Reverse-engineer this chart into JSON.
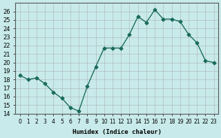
{
  "x": [
    0,
    1,
    2,
    3,
    4,
    5,
    6,
    7,
    8,
    9,
    10,
    11,
    12,
    13,
    14,
    15,
    16,
    17,
    18,
    19,
    20,
    21,
    22,
    23
  ],
  "y": [
    18.5,
    18.0,
    18.2,
    17.5,
    16.5,
    15.8,
    14.7,
    14.3,
    17.2,
    19.5,
    21.7,
    21.7,
    21.7,
    23.3,
    25.4,
    24.7,
    26.2,
    25.1,
    25.1,
    24.8,
    23.3,
    22.3,
    20.2,
    20.0
  ],
  "xlabel": "Humidex (Indice chaleur)",
  "ylabel": "",
  "bg_color": "#c8eaea",
  "grid_color": "#aaaaaa",
  "line_color": "#1a6b5a",
  "marker_color": "#1a6b5a",
  "ylim": [
    14,
    27
  ],
  "xlim": [
    -0.5,
    23.5
  ],
  "yticks": [
    14,
    15,
    16,
    17,
    18,
    19,
    20,
    21,
    22,
    23,
    24,
    25,
    26
  ],
  "xtick_labels": [
    "0",
    "1",
    "2",
    "3",
    "4",
    "5",
    "6",
    "7",
    "8",
    "9",
    "10",
    "11",
    "12",
    "13",
    "14",
    "15",
    "16",
    "17",
    "18",
    "19",
    "20",
    "21",
    "22",
    "23"
  ]
}
